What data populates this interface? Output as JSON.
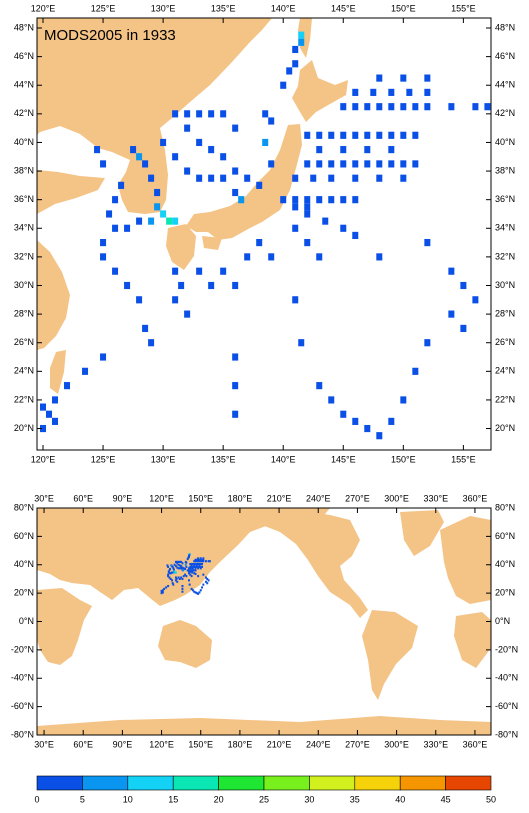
{
  "title": "MODS2005 in 1933",
  "top_map": {
    "lon_range": [
      119.5,
      157.3
    ],
    "lat_range": [
      18.5,
      48.7
    ],
    "xticks": [
      {
        "value": 120,
        "label": "120°E"
      },
      {
        "value": 125,
        "label": "125°E"
      },
      {
        "value": 130,
        "label": "130°E"
      },
      {
        "value": 135,
        "label": "135°E"
      },
      {
        "value": 140,
        "label": "140°E"
      },
      {
        "value": 145,
        "label": "145°E"
      },
      {
        "value": 150,
        "label": "150°E"
      },
      {
        "value": 155,
        "label": "155°E"
      }
    ],
    "yticks": [
      {
        "value": 20,
        "label": "20°N"
      },
      {
        "value": 22,
        "label": "22°N"
      },
      {
        "value": 24,
        "label": "24°N"
      },
      {
        "value": 26,
        "label": "26°N"
      },
      {
        "value": 28,
        "label": "28°N"
      },
      {
        "value": 30,
        "label": "30°N"
      },
      {
        "value": 32,
        "label": "32°N"
      },
      {
        "value": 34,
        "label": "34°N"
      },
      {
        "value": 36,
        "label": "36°N"
      },
      {
        "value": 38,
        "label": "38°N"
      },
      {
        "value": 40,
        "label": "40°N"
      },
      {
        "value": 42,
        "label": "42°N"
      },
      {
        "value": 44,
        "label": "44°N"
      },
      {
        "value": 46,
        "label": "46°N"
      },
      {
        "value": 48,
        "label": "48°N"
      }
    ]
  },
  "bottom_map": {
    "lon_range": [
      24.6,
      372.3
    ],
    "lat_range": [
      -80,
      80
    ],
    "xticks": [
      {
        "value": 30,
        "label": "30°E"
      },
      {
        "value": 60,
        "label": "60°E"
      },
      {
        "value": 90,
        "label": "90°E"
      },
      {
        "value": 120,
        "label": "120°E"
      },
      {
        "value": 150,
        "label": "150°E"
      },
      {
        "value": 180,
        "label": "180°E"
      },
      {
        "value": 210,
        "label": "210°E"
      },
      {
        "value": 240,
        "label": "240°E"
      },
      {
        "value": 270,
        "label": "270°E"
      },
      {
        "value": 300,
        "label": "300°E"
      },
      {
        "value": 330,
        "label": "330°E"
      },
      {
        "value": 360,
        "label": "360°E"
      }
    ],
    "yticks": [
      {
        "value": 80,
        "label": "80°N"
      },
      {
        "value": 60,
        "label": "60°N"
      },
      {
        "value": 40,
        "label": "40°N"
      },
      {
        "value": 20,
        "label": "20°N"
      },
      {
        "value": 0,
        "label": "0°N"
      },
      {
        "value": -20,
        "label": "-20°N"
      },
      {
        "value": -40,
        "label": "-40°N"
      },
      {
        "value": -60,
        "label": "-60°N"
      },
      {
        "value": -80,
        "label": "-80°N"
      }
    ]
  },
  "colorbar": {
    "levels": [
      0,
      5,
      10,
      15,
      20,
      25,
      30,
      35,
      40,
      45,
      50
    ],
    "colors": [
      "#0a50e6",
      "#0a96f0",
      "#14d2f5",
      "#0ae6b4",
      "#1ee632",
      "#78f01e",
      "#d2f01e",
      "#f5d20a",
      "#f59600",
      "#e64600"
    ]
  },
  "observations": [
    [
      145,
      42.5,
      1
    ],
    [
      146,
      42.5,
      1
    ],
    [
      147,
      42.5,
      1
    ],
    [
      148,
      42.5,
      1
    ],
    [
      149,
      42.5,
      1
    ],
    [
      150,
      42.5,
      1
    ],
    [
      151,
      42.5,
      1
    ],
    [
      152,
      42.5,
      1
    ],
    [
      154,
      42.5,
      1
    ],
    [
      156,
      42.5,
      1
    ],
    [
      157,
      42.5,
      1
    ],
    [
      146,
      43.5,
      1
    ],
    [
      147.5,
      43.5,
      1
    ],
    [
      149,
      43.5,
      1
    ],
    [
      150.5,
      43.5,
      1
    ],
    [
      152,
      43.5,
      1
    ],
    [
      148,
      44.5,
      1
    ],
    [
      150,
      44.5,
      1
    ],
    [
      152,
      44.5,
      1
    ],
    [
      142,
      40.5,
      2
    ],
    [
      143,
      40.5,
      2
    ],
    [
      144,
      40.5,
      2
    ],
    [
      145,
      40.5,
      2
    ],
    [
      146,
      40.5,
      2
    ],
    [
      147,
      40.5,
      2
    ],
    [
      148,
      40.5,
      2
    ],
    [
      149,
      40.5,
      2
    ],
    [
      150,
      40.5,
      2
    ],
    [
      151,
      40.5,
      2
    ],
    [
      143,
      39.5,
      1
    ],
    [
      145,
      39.5,
      1
    ],
    [
      147,
      39.5,
      1
    ],
    [
      149,
      39.5,
      1
    ],
    [
      142,
      38.5,
      2
    ],
    [
      143,
      38.5,
      2
    ],
    [
      144,
      38.5,
      2
    ],
    [
      145,
      38.5,
      2
    ],
    [
      146,
      38.5,
      2
    ],
    [
      147,
      38.5,
      2
    ],
    [
      148,
      38.5,
      2
    ],
    [
      149,
      38.5,
      2
    ],
    [
      150,
      38.5,
      2
    ],
    [
      151,
      38.5,
      2
    ],
    [
      141,
      37.5,
      1
    ],
    [
      142.5,
      37.5,
      1
    ],
    [
      144,
      37.5,
      1
    ],
    [
      146,
      37.5,
      1
    ],
    [
      148,
      37.5,
      1
    ],
    [
      150,
      37.5,
      1
    ],
    [
      140,
      36,
      3
    ],
    [
      141,
      36,
      3
    ],
    [
      142,
      36,
      3
    ],
    [
      143,
      36,
      3
    ],
    [
      144,
      36,
      3
    ],
    [
      145,
      36,
      3
    ],
    [
      146,
      36,
      3
    ],
    [
      141,
      35.5,
      4
    ],
    [
      142,
      35.5,
      3
    ],
    [
      142,
      35,
      1
    ],
    [
      143.5,
      34.5,
      1
    ],
    [
      145,
      34,
      1
    ],
    [
      146,
      33.5,
      1
    ],
    [
      141,
      34,
      1
    ],
    [
      142,
      33,
      1
    ],
    [
      143,
      32,
      1
    ],
    [
      127.5,
      39.5,
      3
    ],
    [
      128,
      39,
      6
    ],
    [
      128.5,
      38.5,
      4
    ],
    [
      129,
      37.5,
      3
    ],
    [
      129.5,
      36.5,
      4
    ],
    [
      129.5,
      35.5,
      8
    ],
    [
      130,
      35,
      12
    ],
    [
      130.5,
      34.5,
      18
    ],
    [
      131,
      34.5,
      10
    ],
    [
      129,
      34.5,
      6
    ],
    [
      128,
      34.5,
      3
    ],
    [
      127,
      34,
      2
    ],
    [
      126,
      34,
      2
    ],
    [
      125.5,
      35,
      2
    ],
    [
      126,
      36,
      2
    ],
    [
      126.5,
      37,
      2
    ],
    [
      125,
      38.5,
      2
    ],
    [
      124.5,
      39.5,
      3
    ],
    [
      131,
      42,
      2
    ],
    [
      132,
      42,
      1
    ],
    [
      133,
      42,
      1
    ],
    [
      134,
      42,
      1
    ],
    [
      135,
      42,
      1
    ],
    [
      132,
      41,
      1
    ],
    [
      133,
      40,
      1
    ],
    [
      134,
      39.5,
      1
    ],
    [
      135,
      39,
      1
    ],
    [
      136,
      38,
      1
    ],
    [
      137,
      37.5,
      1
    ],
    [
      138,
      37,
      2
    ],
    [
      139,
      38.5,
      2
    ],
    [
      138.5,
      40,
      5
    ],
    [
      139,
      41.5,
      3
    ],
    [
      138.5,
      42,
      2
    ],
    [
      136,
      41,
      2
    ],
    [
      130,
      40,
      2
    ],
    [
      131,
      39,
      2
    ],
    [
      132,
      38,
      1
    ],
    [
      133,
      37.5,
      1
    ],
    [
      134,
      37.5,
      2
    ],
    [
      135,
      37.5,
      2
    ],
    [
      136,
      36.5,
      2
    ],
    [
      136.5,
      36,
      9
    ],
    [
      141.5,
      47.5,
      14
    ],
    [
      141.5,
      47,
      7
    ],
    [
      141,
      46.5,
      2
    ],
    [
      141,
      45.5,
      1
    ],
    [
      140.5,
      45,
      1
    ],
    [
      140,
      44,
      1
    ],
    [
      125,
      33,
      2
    ],
    [
      125,
      32,
      1
    ],
    [
      126,
      31,
      1
    ],
    [
      127,
      30,
      1
    ],
    [
      128,
      29,
      1
    ],
    [
      128.5,
      27,
      1
    ],
    [
      129,
      26,
      1
    ],
    [
      125,
      25,
      1
    ],
    [
      123.5,
      24,
      1
    ],
    [
      122,
      23,
      1
    ],
    [
      121,
      22,
      2
    ],
    [
      120,
      21.5,
      2
    ],
    [
      120.5,
      21,
      1
    ],
    [
      121,
      20.5,
      1
    ],
    [
      120,
      20,
      1
    ],
    [
      131,
      31,
      1
    ],
    [
      131.5,
      30,
      1
    ],
    [
      131,
      29,
      1
    ],
    [
      132,
      28,
      1
    ],
    [
      133,
      31,
      1
    ],
    [
      134,
      30,
      1
    ],
    [
      135,
      31,
      1
    ],
    [
      136,
      30,
      1
    ],
    [
      137,
      32,
      1
    ],
    [
      138,
      33,
      1
    ],
    [
      139,
      32,
      1
    ],
    [
      141,
      29,
      1
    ],
    [
      141.5,
      26,
      1
    ],
    [
      143,
      23,
      1
    ],
    [
      144,
      22,
      1
    ],
    [
      145,
      21,
      1
    ],
    [
      146,
      20.5,
      1
    ],
    [
      147,
      20,
      1
    ],
    [
      148,
      19.5,
      1
    ],
    [
      149,
      20.5,
      1
    ],
    [
      150,
      22,
      1
    ],
    [
      151,
      24,
      1
    ],
    [
      152,
      26,
      1
    ],
    [
      154,
      28,
      1
    ],
    [
      155,
      30,
      1
    ],
    [
      156,
      29,
      1
    ],
    [
      136,
      25,
      1
    ],
    [
      136,
      23,
      1
    ],
    [
      136,
      21,
      1
    ],
    [
      148,
      32,
      1
    ],
    [
      152,
      33,
      1
    ],
    [
      154,
      31,
      1
    ],
    [
      155,
      27,
      1
    ]
  ]
}
